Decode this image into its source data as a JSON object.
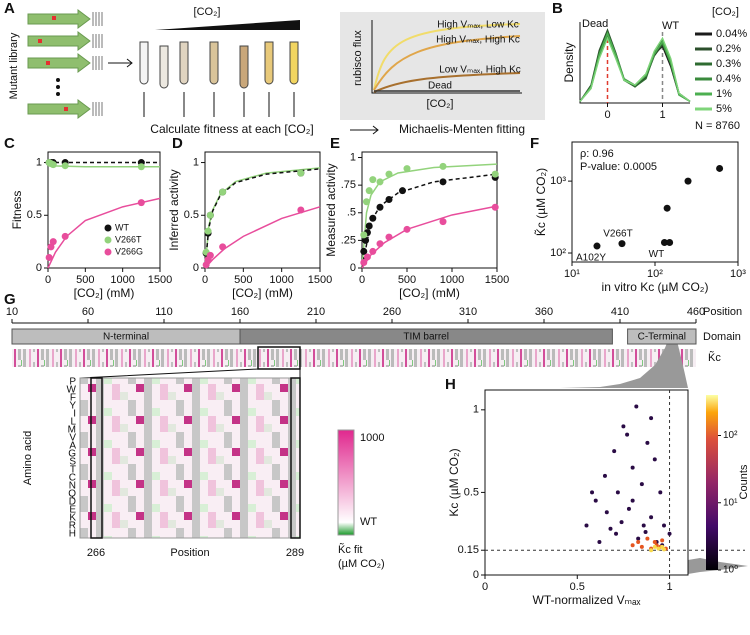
{
  "figure": {
    "panel_labels": [
      "A",
      "B",
      "C",
      "D",
      "E",
      "F",
      "G",
      "H"
    ],
    "a": {
      "library": "Mutant library",
      "co2": "[CO₂]",
      "fitness": "Calculate fitness at each [CO₂]",
      "mm": "Michaelis-Menten fitting",
      "ylabel": "rubisco flux",
      "xlabel": "[CO₂]",
      "curves": [
        "High Vₘₐₓ, Low Kc",
        "High Vₘₐₓ, High Kc",
        "Low Vₘₐₓ, High Kc",
        "Dead"
      ]
    },
    "g": {
      "position_ticks": [
        10,
        60,
        110,
        160,
        210,
        260,
        310,
        360,
        410,
        460
      ],
      "position": "Position",
      "domain": "Domain",
      "domains": [
        {
          "name": "N-terminal",
          "start": 10,
          "end": 160
        },
        {
          "name": "TIM barrel",
          "start": 160,
          "end": 405
        },
        {
          "name": "C-Terminal",
          "start": 415,
          "end": 460
        }
      ],
      "row_label": "K̃c",
      "amino_acids": [
        "P",
        "W",
        "F",
        "Y",
        "I",
        "L",
        "M",
        "V",
        "A",
        "G",
        "S",
        "T",
        "C",
        "N",
        "Q",
        "D",
        "E",
        "K",
        "R",
        "H"
      ],
      "ylabel": "Amino acid",
      "xlabel": "Position",
      "zoom_ticks": [
        "266",
        "289"
      ],
      "colorbar": {
        "top": "1000",
        "bottom": "WT",
        "label": "K̃c fit",
        "unit": "(µM CO₂)"
      }
    }
  },
  "chart_data": [
    {
      "type": "line",
      "ylabel": "Density",
      "legend_title": "[CO₂]",
      "note": "N = 8760",
      "annotations": [
        "Dead",
        "WT"
      ],
      "x": [
        -0.5,
        -0.3,
        -0.15,
        0,
        0.15,
        0.3,
        0.5,
        0.7,
        0.85,
        1,
        1.15,
        1.3,
        1.5
      ],
      "xlim": [
        -0.5,
        1.5
      ],
      "xticks": [
        0,
        1
      ],
      "ylim": [
        0,
        1
      ],
      "markers": [
        {
          "x": 0,
          "color": "#e03a2f"
        },
        {
          "x": 1,
          "color": "#888888"
        }
      ],
      "series": [
        {
          "name": "0.04%",
          "color": "#1b1b1b",
          "values": [
            0.02,
            0.2,
            0.6,
            0.85,
            0.6,
            0.3,
            0.22,
            0.35,
            0.6,
            0.7,
            0.45,
            0.1,
            0.02
          ]
        },
        {
          "name": "0.2%",
          "color": "#2b4f2b",
          "values": [
            0.02,
            0.22,
            0.65,
            0.9,
            0.62,
            0.3,
            0.2,
            0.32,
            0.58,
            0.72,
            0.5,
            0.12,
            0.02
          ]
        },
        {
          "name": "0.3%",
          "color": "#2e6b31",
          "values": [
            0.02,
            0.2,
            0.62,
            0.88,
            0.6,
            0.28,
            0.2,
            0.3,
            0.6,
            0.78,
            0.52,
            0.12,
            0.02
          ]
        },
        {
          "name": "0.4%",
          "color": "#3a8a3c",
          "values": [
            0.02,
            0.18,
            0.58,
            0.82,
            0.58,
            0.28,
            0.22,
            0.36,
            0.62,
            0.74,
            0.48,
            0.1,
            0.02
          ]
        },
        {
          "name": "1%",
          "color": "#4caf50",
          "values": [
            0.02,
            0.2,
            0.6,
            0.86,
            0.6,
            0.3,
            0.22,
            0.34,
            0.6,
            0.76,
            0.5,
            0.1,
            0.02
          ]
        },
        {
          "name": "5%",
          "color": "#7fd47a",
          "values": [
            0.02,
            0.18,
            0.55,
            0.8,
            0.55,
            0.28,
            0.22,
            0.36,
            0.64,
            0.8,
            0.55,
            0.12,
            0.02
          ]
        }
      ]
    },
    {
      "type": "scatter",
      "xlabel": "[CO₂] (mM)",
      "ylabel": "Fitness",
      "xlim": [
        0,
        1500
      ],
      "xticks": [
        0,
        500,
        1000,
        1500
      ],
      "ylim": [
        0,
        1.1
      ],
      "yticks": [
        0,
        0.5,
        1
      ],
      "legend": "lower right",
      "series": [
        {
          "name": "WT",
          "color": "#111111",
          "x": [
            15,
            40,
            70,
            230,
            1250
          ],
          "values": [
            1,
            1,
            1,
            1,
            1
          ]
        },
        {
          "name": "V266T",
          "color": "#93d37c",
          "x": [
            15,
            40,
            70,
            230,
            1250
          ],
          "values": [
            1.0,
            0.99,
            0.98,
            0.97,
            0.96
          ]
        },
        {
          "name": "V266G",
          "color": "#e84d9c",
          "x": [
            15,
            40,
            70,
            230,
            1250
          ],
          "values": [
            0.1,
            0.2,
            0.25,
            0.3,
            0.62
          ]
        }
      ],
      "fits": [
        {
          "color": "#111111",
          "dash": true,
          "x": [
            0,
            1500
          ],
          "values": [
            1,
            1
          ]
        },
        {
          "color": "#93d37c",
          "x": [
            0,
            500,
            1500
          ],
          "values": [
            0.97,
            0.96,
            0.96
          ]
        },
        {
          "color": "#e84d9c",
          "x": [
            0,
            100,
            250,
            500,
            1000,
            1500
          ],
          "values": [
            0,
            0.15,
            0.3,
            0.45,
            0.58,
            0.66
          ]
        }
      ]
    },
    {
      "type": "scatter",
      "xlabel": "[CO₂] (mM)",
      "ylabel": "Inferred activity",
      "xlim": [
        0,
        1500
      ],
      "xticks": [
        0,
        500,
        1000,
        1500
      ],
      "ylim": [
        0,
        1.1
      ],
      "yticks": [
        0,
        0.5,
        1
      ],
      "series": [
        {
          "name": "WT",
          "color": "#111111",
          "x": [
            15,
            40,
            70,
            230,
            1250
          ],
          "values": [
            0.14,
            0.33,
            0.5,
            0.72,
            0.9
          ]
        },
        {
          "name": "V266T",
          "color": "#93d37c",
          "x": [
            15,
            40,
            70,
            230,
            1250
          ],
          "values": [
            0.15,
            0.35,
            0.5,
            0.72,
            0.9
          ]
        },
        {
          "name": "V266G",
          "color": "#e84d9c",
          "x": [
            15,
            40,
            70,
            230,
            1250
          ],
          "values": [
            0.03,
            0.08,
            0.12,
            0.2,
            0.55
          ]
        }
      ],
      "fits": [
        {
          "color": "#93d37c",
          "x": [
            0,
            50,
            100,
            200,
            400,
            800,
            1500
          ],
          "values": [
            0,
            0.4,
            0.55,
            0.7,
            0.82,
            0.9,
            0.95
          ]
        },
        {
          "color": "#111111",
          "dash": true,
          "x": [
            0,
            50,
            100,
            200,
            400,
            800,
            1500
          ],
          "values": [
            0,
            0.38,
            0.54,
            0.69,
            0.81,
            0.89,
            0.94
          ]
        },
        {
          "color": "#e84d9c",
          "x": [
            0,
            100,
            250,
            500,
            1000,
            1500
          ],
          "values": [
            0,
            0.08,
            0.18,
            0.3,
            0.47,
            0.58
          ]
        }
      ]
    },
    {
      "type": "scatter",
      "xlabel": "[CO₂] (mM)",
      "ylabel": "Measured activity",
      "xlim": [
        0,
        1500
      ],
      "xticks": [
        0,
        500,
        1000,
        1500
      ],
      "ylim": [
        0,
        1.05
      ],
      "yticks": [
        0,
        {
          "value": 0.25,
          "label": ".25"
        },
        {
          "value": 0.5,
          "label": ".5"
        },
        {
          "value": 0.75,
          "label": ".75"
        },
        1
      ],
      "series": [
        {
          "name": "WT",
          "color": "#111111",
          "x": [
            20,
            40,
            60,
            80,
            120,
            200,
            300,
            450,
            900,
            1480
          ],
          "values": [
            0.15,
            0.25,
            0.32,
            0.38,
            0.45,
            0.55,
            0.62,
            0.7,
            0.78,
            0.82
          ]
        },
        {
          "name": "V266T",
          "color": "#93d37c",
          "x": [
            20,
            50,
            80,
            120,
            200,
            300,
            500,
            900,
            1480
          ],
          "values": [
            0.3,
            0.6,
            0.7,
            0.8,
            0.78,
            0.85,
            0.9,
            0.92,
            0.85
          ]
        },
        {
          "name": "V266G",
          "color": "#e84d9c",
          "x": [
            20,
            60,
            120,
            200,
            300,
            500,
            900,
            1480
          ],
          "values": [
            0.05,
            0.1,
            0.15,
            0.22,
            0.28,
            0.35,
            0.42,
            0.55
          ]
        }
      ],
      "fits": [
        {
          "color": "#93d37c",
          "x": [
            0,
            50,
            100,
            200,
            400,
            800,
            1500
          ],
          "values": [
            0,
            0.5,
            0.66,
            0.78,
            0.86,
            0.91,
            0.94
          ]
        },
        {
          "color": "#111111",
          "dash": true,
          "x": [
            0,
            100,
            200,
            400,
            800,
            1500
          ],
          "values": [
            0,
            0.42,
            0.56,
            0.68,
            0.78,
            0.85
          ]
        },
        {
          "color": "#e84d9c",
          "x": [
            0,
            100,
            250,
            500,
            1000,
            1500
          ],
          "values": [
            0,
            0.12,
            0.23,
            0.35,
            0.48,
            0.56
          ]
        }
      ]
    },
    {
      "type": "scatter",
      "xlabel": "in vitro Kc (µM CO₂)",
      "ylabel": "K̃c (µM CO₂)",
      "xscale": "log",
      "yscale": "log",
      "xlim": [
        10,
        1000
      ],
      "xticks": [
        {
          "value": 10,
          "label": "10¹"
        },
        {
          "value": 100,
          "label": "10²"
        },
        {
          "value": 1000,
          "label": "10³"
        }
      ],
      "ylim": [
        75,
        3500
      ],
      "yticks": [
        {
          "value": 100,
          "label": "10²"
        },
        {
          "value": 1000,
          "label": "10³"
        }
      ],
      "annotations": [
        "ρ: 0.96",
        "P-value: 0.0005"
      ],
      "point_labels": [
        "A102Y",
        "V266T",
        "WT"
      ],
      "series": [
        {
          "color": "#111111",
          "x": [
            20,
            40,
            130,
            150,
            140,
            250,
            600
          ],
          "values": [
            125,
            135,
            140,
            140,
            420,
            1000,
            1500
          ]
        }
      ]
    },
    {
      "type": "scatter",
      "xlabel": "WT-normalized Vₘₐₓ",
      "ylabel": "Kc (µM CO₂)",
      "xlim": [
        0,
        1.1
      ],
      "xticks": [
        0,
        0.5,
        1
      ],
      "ylim": [
        0,
        1.12
      ],
      "yticks": [
        0,
        0.15,
        0.5,
        1
      ],
      "reference_lines": {
        "x": 1,
        "y": 0.15
      },
      "colorbar": {
        "label": "Counts",
        "lim": [
          1,
          400
        ],
        "ticks": [
          {
            "value": 1,
            "label": "10⁰"
          },
          {
            "value": 10,
            "label": "10¹"
          },
          {
            "value": 100,
            "label": "10²"
          }
        ]
      },
      "series": [
        {
          "color": "#2a0b45",
          "x": [
            0.55,
            0.6,
            0.65,
            0.7,
            0.72,
            0.75,
            0.78,
            0.8,
            0.82,
            0.85,
            0.88,
            0.9,
            0.92,
            0.95,
            0.97,
            1.0,
            0.62,
            0.68,
            0.74,
            0.83,
            0.87,
            0.93,
            0.58,
            0.77,
            0.9,
            0.66,
            0.8,
            0.71,
            0.96,
            0.86
          ],
          "values": [
            0.3,
            0.45,
            0.6,
            0.75,
            0.5,
            0.9,
            0.4,
            0.65,
            1.02,
            0.55,
            0.8,
            0.35,
            0.7,
            0.5,
            0.3,
            0.25,
            0.2,
            0.28,
            0.32,
            0.22,
            0.26,
            0.2,
            0.5,
            0.85,
            0.95,
            0.38,
            0.45,
            0.25,
            0.18,
            0.3
          ]
        },
        {
          "color": "#e5561f",
          "x": [
            0.8,
            0.85,
            0.9,
            0.92,
            0.95,
            0.98,
            0.88,
            0.93,
            0.96,
            0.83
          ],
          "values": [
            0.18,
            0.17,
            0.16,
            0.2,
            0.17,
            0.16,
            0.22,
            0.18,
            0.21,
            0.2
          ]
        },
        {
          "color": "#f8d94a",
          "x": [
            0.9,
            0.94,
            0.97,
            0.92,
            0.96
          ],
          "values": [
            0.15,
            0.16,
            0.155,
            0.17,
            0.17
          ]
        }
      ]
    }
  ]
}
